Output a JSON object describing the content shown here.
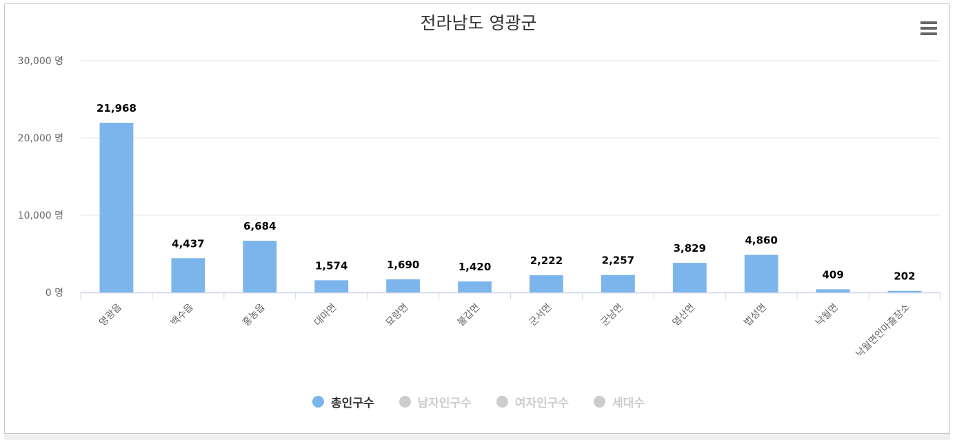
{
  "chart_data": {
    "type": "bar",
    "title": "전라남도 영광군",
    "categories": [
      "영광읍",
      "백수읍",
      "홍농읍",
      "대마면",
      "묘량면",
      "불갑면",
      "군서면",
      "군남면",
      "염산면",
      "법성면",
      "낙월면",
      "낙월면안마출장소"
    ],
    "series": [
      {
        "name": "총인구수",
        "values": [
          21968,
          4437,
          6684,
          1574,
          1690,
          1420,
          2222,
          2257,
          3829,
          4860,
          409,
          202
        ],
        "color": "#7cb5ec",
        "visible": true
      },
      {
        "name": "남자인구수",
        "visible": false
      },
      {
        "name": "여자인구수",
        "visible": false
      },
      {
        "name": "세대수",
        "visible": false
      }
    ],
    "data_labels": [
      "21,968",
      "4,437",
      "6,684",
      "1,574",
      "1,690",
      "1,420",
      "2,222",
      "2,257",
      "3,829",
      "4,860",
      "409",
      "202"
    ],
    "ylim": [
      0,
      30000
    ],
    "yticks": [
      0,
      10000,
      20000,
      30000
    ],
    "ytick_labels": [
      "0 명",
      "10,000 명",
      "20,000 명",
      "30,000 명"
    ],
    "grid": true,
    "legend_position": "bottom-center"
  },
  "legend": {
    "items": [
      {
        "label": "총인구수",
        "color": "#7cb5ec",
        "active": true
      },
      {
        "label": "남자인구수",
        "color": "#cccccc",
        "active": false
      },
      {
        "label": "여자인구수",
        "color": "#cccccc",
        "active": false
      },
      {
        "label": "세대수",
        "color": "#cccccc",
        "active": false
      }
    ]
  },
  "toolbar": {
    "menu_icon": "hamburger-menu-icon"
  },
  "colors": {
    "bar": "#7cb5ec",
    "grid": "#e6e6e6",
    "axis": "#ccd6eb",
    "active_legend_text": "#333333",
    "inactive_legend_text": "#cccccc"
  }
}
